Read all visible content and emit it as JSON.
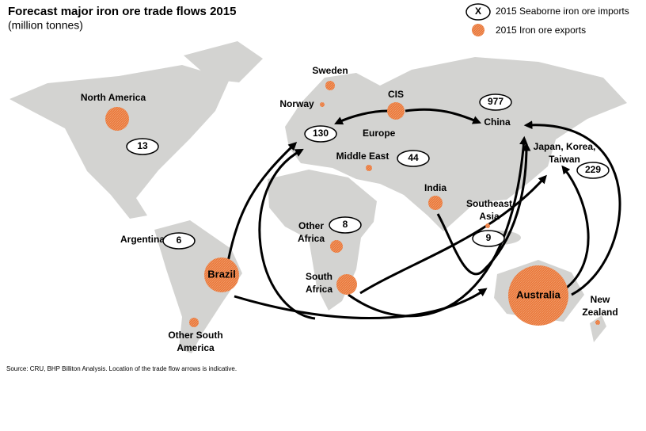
{
  "title": "Forecast major iron ore trade flows 2015",
  "subtitle": "(million tonnes)",
  "legend": {
    "imports_marker": "X",
    "imports_label": "2015 Seaborne iron ore imports",
    "exports_label": "2015 Iron ore exports"
  },
  "regions": [
    {
      "label": [
        "North America"
      ],
      "import": 13
    },
    {
      "label": [
        "Sweden"
      ]
    },
    {
      "label": [
        "Norway"
      ]
    },
    {
      "label": [
        "CIS"
      ]
    },
    {
      "label": [
        "Europe"
      ],
      "import": 130
    },
    {
      "label": [
        "China"
      ],
      "import": 977
    },
    {
      "label": [
        "Japan, Korea,",
        "Taiwan"
      ],
      "import": 229
    },
    {
      "label": [
        "Middle East"
      ],
      "import": 44
    },
    {
      "label": [
        "India"
      ]
    },
    {
      "label": [
        "Southeast",
        "Asia"
      ],
      "import": 9
    },
    {
      "label": [
        "Other",
        "Africa"
      ],
      "import": 8
    },
    {
      "label": [
        "Argentina"
      ],
      "import": 6
    },
    {
      "label": [
        "Brazil"
      ]
    },
    {
      "label": [
        "South",
        "Africa"
      ]
    },
    {
      "label": [
        "Other South",
        "America"
      ]
    },
    {
      "label": [
        "Australia"
      ]
    },
    {
      "label": [
        "New",
        "Zealand"
      ]
    }
  ],
  "source": "Source: CRU, BHP Billiton Analysis. Location of the trade flow arrows is indicative."
}
